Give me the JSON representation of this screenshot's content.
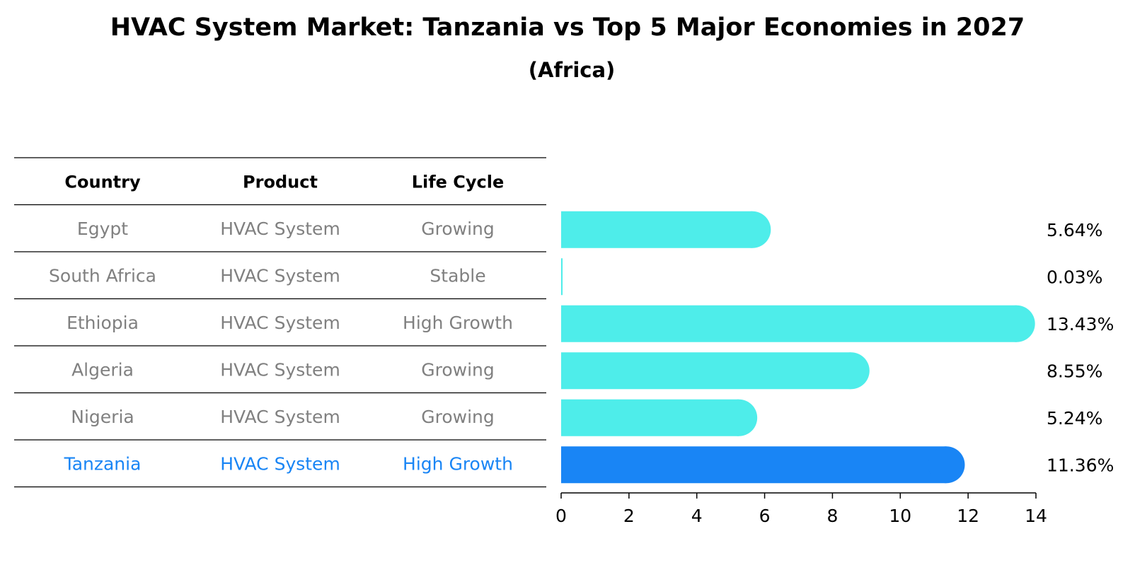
{
  "chart_data": {
    "type": "bar",
    "orientation": "horizontal",
    "title": "HVAC System Market: Tanzania vs Top 5 Major Economies in 2027",
    "subtitle": "(Africa)",
    "table": {
      "columns": [
        "Country",
        "Product",
        "Life Cycle"
      ],
      "rows": [
        {
          "country": "Egypt",
          "product": "HVAC System",
          "life_cycle": "Growing",
          "highlight": false
        },
        {
          "country": "South Africa",
          "product": "HVAC System",
          "life_cycle": "Stable",
          "highlight": false
        },
        {
          "country": "Ethiopia",
          "product": "HVAC System",
          "life_cycle": "High Growth",
          "highlight": false
        },
        {
          "country": "Algeria",
          "product": "HVAC System",
          "life_cycle": "Growing",
          "highlight": false
        },
        {
          "country": "Nigeria",
          "product": "HVAC System",
          "life_cycle": "Growing",
          "highlight": false
        },
        {
          "country": "Tanzania",
          "product": "HVAC System",
          "life_cycle": "High Growth",
          "highlight": true
        }
      ]
    },
    "values": [
      5.64,
      0.03,
      13.43,
      8.55,
      5.24,
      11.36
    ],
    "value_labels": [
      "5.64%",
      "0.03%",
      "13.43%",
      "8.55%",
      "5.24%",
      "11.36%"
    ],
    "xlim": [
      0,
      14
    ],
    "xticks": [
      0,
      2,
      4,
      6,
      8,
      10,
      12,
      14
    ],
    "xtick_labels": [
      "0",
      "2",
      "4",
      "6",
      "8",
      "10",
      "12",
      "14"
    ],
    "colors": {
      "bar": "#4EEDEA",
      "highlight_bar": "#1985F5",
      "highlight_text": "#1985F5",
      "muted_text": "#808080",
      "text": "#000000"
    }
  }
}
